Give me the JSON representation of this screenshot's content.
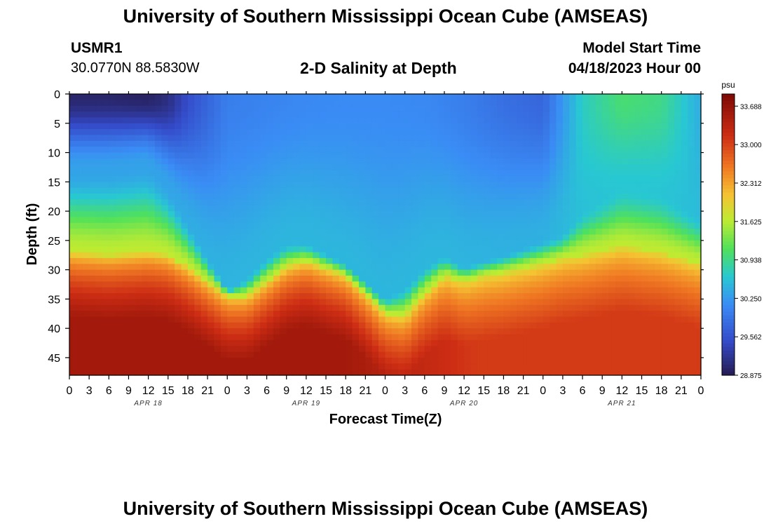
{
  "title": "University of Southern Mississippi Ocean Cube (AMSEAS)",
  "footer_title": "University of Southern Mississippi Ocean Cube (AMSEAS)",
  "station": {
    "id": "USMR1",
    "coords": "30.0770N  88.5830W"
  },
  "model_start": {
    "label": "Model Start Time",
    "value": "04/18/2023 Hour 00"
  },
  "chart_data": {
    "type": "heatmap",
    "title": "2-D Salinity at Depth",
    "xlabel": "Forecast Time(Z)",
    "ylabel": "Depth (ft)",
    "x_hours_range": [
      0,
      96
    ],
    "ylim": [
      0,
      48
    ],
    "x_tick_labels": [
      "0",
      "3",
      "6",
      "9",
      "12",
      "15",
      "18",
      "21",
      "0",
      "3",
      "6",
      "9",
      "12",
      "15",
      "18",
      "21",
      "0",
      "3",
      "6",
      "9",
      "12",
      "15",
      "18",
      "21",
      "0",
      "3",
      "6",
      "9",
      "12",
      "15",
      "18",
      "21",
      "0"
    ],
    "day_labels": [
      {
        "text": "APR 18",
        "hour": 12
      },
      {
        "text": "APR 19",
        "hour": 36
      },
      {
        "text": "APR 20",
        "hour": 60
      },
      {
        "text": "APR 21",
        "hour": 84
      }
    ],
    "y_ticks": [
      0,
      5,
      10,
      15,
      20,
      25,
      30,
      35,
      40,
      45
    ],
    "colorbar": {
      "unit": "psu",
      "min": 28.875,
      "max": 33.905,
      "tick_labels": [
        "33.688",
        "33.000",
        "32.312",
        "31.625",
        "30.938",
        "30.250",
        "29.562",
        "28.875"
      ]
    },
    "surface_salinity_profile": {
      "hours": [
        0,
        6,
        12,
        15,
        18,
        21,
        24,
        30,
        36,
        42,
        48,
        54,
        60,
        66,
        72,
        78,
        84,
        90,
        96
      ],
      "psu": [
        29.0,
        29.0,
        28.95,
        29.1,
        29.5,
        29.75,
        30.0,
        30.05,
        30.1,
        30.12,
        30.12,
        30.1,
        30.0,
        29.85,
        29.75,
        30.7,
        31.05,
        30.95,
        30.4
      ]
    },
    "halocline_depth_ft": {
      "hours": [
        0,
        6,
        12,
        15,
        18,
        21,
        24,
        27,
        30,
        33,
        36,
        42,
        45,
        48,
        51,
        54,
        57,
        60,
        63,
        66,
        72,
        75,
        78,
        84,
        90,
        96
      ],
      "depth": [
        27,
        27.5,
        27,
        27.5,
        29.5,
        32,
        34.5,
        34.5,
        32,
        29.5,
        28.5,
        31,
        34,
        37.5,
        38,
        34,
        31,
        32,
        31,
        30.5,
        29,
        28,
        27.5,
        26,
        27,
        29
      ]
    },
    "mixed_layer_base_ft": {
      "hours": [
        0,
        6,
        12,
        15,
        18,
        21,
        24,
        27,
        30,
        33,
        36,
        42,
        45,
        48,
        51,
        54,
        57,
        60,
        66,
        72,
        75,
        78,
        84,
        90,
        96
      ],
      "depth": [
        13,
        13,
        12,
        16,
        22,
        28,
        33.5,
        31.5,
        28,
        25.5,
        25.5,
        29,
        32,
        35,
        33,
        29.5,
        27.5,
        29.5,
        27.5,
        25,
        24,
        20,
        16,
        17,
        21
      ]
    }
  }
}
